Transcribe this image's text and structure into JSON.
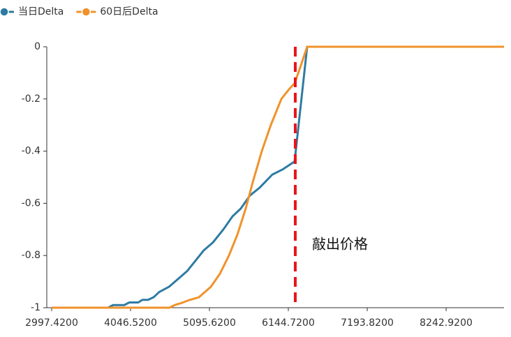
{
  "chart_data": {
    "type": "line",
    "series": [
      {
        "name": "当日Delta",
        "color": "#2e7ba2",
        "x": [
          2997.42,
          3749,
          3814,
          3963,
          4028,
          4149,
          4204,
          4279,
          4353,
          4427,
          4557,
          4678,
          4798,
          4910,
          5021,
          5142,
          5281,
          5402,
          5513,
          5634,
          5764,
          5931,
          6070,
          6228,
          6395,
          9013
        ],
        "values": [
          -1,
          -1,
          -0.99,
          -0.99,
          -0.98,
          -0.98,
          -0.97,
          -0.97,
          -0.96,
          -0.94,
          -0.92,
          -0.89,
          -0.86,
          -0.82,
          -0.78,
          -0.75,
          -0.7,
          -0.65,
          -0.62,
          -0.57,
          -0.54,
          -0.49,
          -0.47,
          -0.44,
          0,
          0
        ]
      },
      {
        "name": "60日后Delta",
        "color": "#f0922b",
        "x": [
          2997.42,
          4566,
          4631,
          4743,
          4835,
          4956,
          5114,
          5235,
          5355,
          5467,
          5578,
          5671,
          5792,
          5912,
          6052,
          6163,
          6228,
          6302,
          6395,
          9013
        ],
        "values": [
          -1,
          -1,
          -0.99,
          -0.98,
          -0.97,
          -0.96,
          -0.92,
          -0.87,
          -0.8,
          -0.72,
          -0.62,
          -0.52,
          -0.4,
          -0.3,
          -0.2,
          -0.16,
          -0.14,
          -0.08,
          0,
          0
        ]
      }
    ],
    "xlim": [
      2997.42,
      9013
    ],
    "xticks": [
      {
        "value": 2997.42,
        "label": "2997.4200"
      },
      {
        "value": 4046.52,
        "label": "4046.5200"
      },
      {
        "value": 5095.62,
        "label": "5095.6200"
      },
      {
        "value": 6144.72,
        "label": "6144.7200"
      },
      {
        "value": 7193.82,
        "label": "7193.8200"
      },
      {
        "value": 8242.92,
        "label": "8242.9200"
      }
    ],
    "ylim": [
      -1,
      0
    ],
    "yticks": [
      0,
      -0.2,
      -0.4,
      -0.6,
      -0.8,
      -1
    ],
    "annotation": {
      "label": "敲出价格",
      "x": 6237,
      "color": "#e8141b"
    }
  }
}
